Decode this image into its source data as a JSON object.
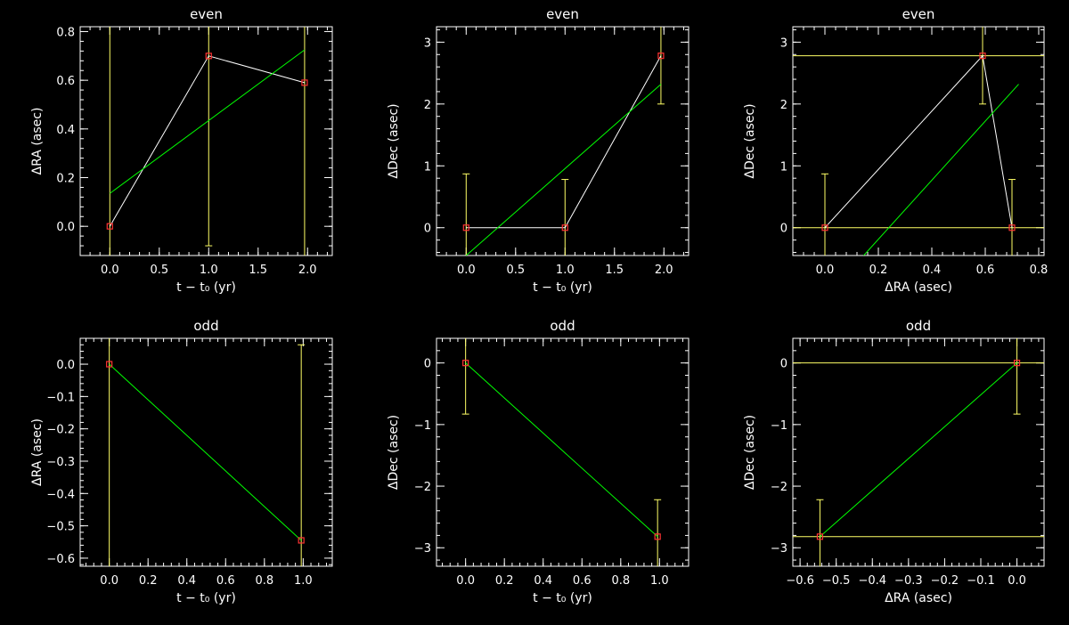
{
  "colors": {
    "background": "#000000",
    "axes": "#ffffff",
    "data_line": "#ffffff",
    "fit_line": "#00ff00",
    "error_bar": "#ffff66",
    "marker": "#ff3333"
  },
  "chart_data": [
    {
      "type": "scatter",
      "title": "even",
      "xlabel": "t − t₀ (yr)",
      "ylabel": "ΔRA (asec)",
      "xlim": [
        -0.3,
        2.25
      ],
      "ylim": [
        -0.12,
        0.82
      ],
      "xticks": [
        0,
        0.5,
        1,
        1.5,
        2
      ],
      "xticklabels": [
        "0.0",
        "0.5",
        "1.0",
        "1.5",
        "2.0"
      ],
      "yticks": [
        0,
        0.2,
        0.4,
        0.6,
        0.8
      ],
      "yticklabels": [
        "0.0",
        "0.2",
        "0.4",
        "0.6",
        "0.8"
      ],
      "xminor": 0.1,
      "yminor": 0.04,
      "x": [
        0,
        1,
        1.97
      ],
      "y": [
        0,
        0.7,
        0.59
      ],
      "yerr_low": [
        -0.12,
        -0.08,
        -0.12
      ],
      "yerr_high": [
        0.82,
        0.82,
        0.82
      ],
      "fit": [
        [
          0,
          0.135
        ],
        [
          1.97,
          0.725
        ]
      ],
      "connect": true
    },
    {
      "type": "scatter",
      "title": "even",
      "xlabel": "t − t₀ (yr)",
      "ylabel": "ΔDec (asec)",
      "xlim": [
        -0.3,
        2.25
      ],
      "ylim": [
        -0.45,
        3.25
      ],
      "xticks": [
        0,
        0.5,
        1,
        1.5,
        2
      ],
      "xticklabels": [
        "0.0",
        "0.5",
        "1.0",
        "1.5",
        "2.0"
      ],
      "yticks": [
        0,
        1,
        2,
        3
      ],
      "yticklabels": [
        "0",
        "1",
        "2",
        "3"
      ],
      "xminor": 0.1,
      "yminor": 0.2,
      "x": [
        0,
        1,
        1.97
      ],
      "y": [
        0,
        0,
        2.78
      ],
      "yerr_low": [
        -0.45,
        -0.45,
        2.0
      ],
      "yerr_high": [
        0.87,
        0.78,
        3.25
      ],
      "fit": [
        [
          0,
          -0.45
        ],
        [
          1.97,
          2.32
        ]
      ],
      "connect": true
    },
    {
      "type": "scatter",
      "title": "even",
      "xlabel": "ΔRA (asec)",
      "ylabel": "ΔDec (asec)",
      "xlim": [
        -0.12,
        0.82
      ],
      "ylim": [
        -0.45,
        3.25
      ],
      "xticks": [
        0,
        0.2,
        0.4,
        0.6,
        0.8
      ],
      "xticklabels": [
        "0.0",
        "0.2",
        "0.4",
        "0.6",
        "0.8"
      ],
      "yticks": [
        0,
        1,
        2,
        3
      ],
      "yticklabels": [
        "0",
        "1",
        "2",
        "3"
      ],
      "xminor": 0.04,
      "yminor": 0.2,
      "x": [
        0,
        0.7,
        0.59
      ],
      "y": [
        0,
        0,
        2.78
      ],
      "yerr_low": [
        -0.45,
        -0.45,
        2.0
      ],
      "yerr_high": [
        0.87,
        0.78,
        3.25
      ],
      "xerr_lines": [
        0,
        2.78
      ],
      "fit": [
        [
          0.145,
          -0.45
        ],
        [
          0.725,
          2.32
        ]
      ],
      "connect": true,
      "connect_order": [
        2,
        1
      ]
    },
    {
      "type": "scatter",
      "title": "odd",
      "xlabel": "t − t₀ (yr)",
      "ylabel": "ΔRA (asec)",
      "xlim": [
        -0.15,
        1.15
      ],
      "ylim": [
        -0.625,
        0.08
      ],
      "xticks": [
        0,
        0.2,
        0.4,
        0.6,
        0.8,
        1.0
      ],
      "xticklabels": [
        "0.0",
        "0.2",
        "0.4",
        "0.6",
        "0.8",
        "1.0"
      ],
      "yticks": [
        0,
        -0.1,
        -0.2,
        -0.3,
        -0.4,
        -0.5,
        -0.6
      ],
      "yticklabels": [
        "0.0",
        "−0.1",
        "−0.2",
        "−0.3",
        "−0.4",
        "−0.5",
        "−0.6"
      ],
      "xminor": 0.04,
      "yminor": 0.02,
      "x": [
        0,
        0.99
      ],
      "y": [
        0,
        -0.545
      ],
      "yerr_low": [
        -0.625,
        -0.625
      ],
      "yerr_high": [
        0.08,
        0.06
      ],
      "fit": [
        [
          0,
          0
        ],
        [
          0.99,
          -0.545
        ]
      ],
      "connect": false
    },
    {
      "type": "scatter",
      "title": "odd",
      "xlabel": "t − t₀ (yr)",
      "ylabel": "ΔDec (asec)",
      "xlim": [
        -0.15,
        1.15
      ],
      "ylim": [
        -3.3,
        0.4
      ],
      "xticks": [
        0,
        0.2,
        0.4,
        0.6,
        0.8,
        1.0
      ],
      "xticklabels": [
        "0.0",
        "0.2",
        "0.4",
        "0.6",
        "0.8",
        "1.0"
      ],
      "yticks": [
        0,
        -1,
        -2,
        -3
      ],
      "yticklabels": [
        "0",
        "−1",
        "−2",
        "−3"
      ],
      "xminor": 0.04,
      "yminor": 0.2,
      "x": [
        0,
        0.99
      ],
      "y": [
        0,
        -2.82
      ],
      "yerr_low": [
        -0.83,
        -3.3
      ],
      "yerr_high": [
        0.4,
        -2.22
      ],
      "fit": [
        [
          0,
          0
        ],
        [
          0.99,
          -2.82
        ]
      ],
      "connect": false
    },
    {
      "type": "scatter",
      "title": "odd",
      "xlabel": "ΔRA (asec)",
      "ylabel": "ΔDec (asec)",
      "xlim": [
        -0.62,
        0.075
      ],
      "ylim": [
        -3.3,
        0.4
      ],
      "xticks": [
        -0.6,
        -0.5,
        -0.4,
        -0.3,
        -0.2,
        -0.1,
        0
      ],
      "xticklabels": [
        "−0.6",
        "−0.5",
        "−0.4",
        "−0.3",
        "−0.2",
        "−0.1",
        "0.0"
      ],
      "yticks": [
        0,
        -1,
        -2,
        -3
      ],
      "yticklabels": [
        "0",
        "−1",
        "−2",
        "−3"
      ],
      "xminor": 0.02,
      "yminor": 0.2,
      "x": [
        0,
        -0.545
      ],
      "y": [
        0,
        -2.82
      ],
      "yerr_low": [
        -0.83,
        -3.3
      ],
      "yerr_high": [
        0.4,
        -2.22
      ],
      "xerr_lines": [
        0,
        -2.82
      ],
      "fit": [
        [
          0,
          0
        ],
        [
          -0.545,
          -2.82
        ]
      ],
      "connect": false
    }
  ]
}
